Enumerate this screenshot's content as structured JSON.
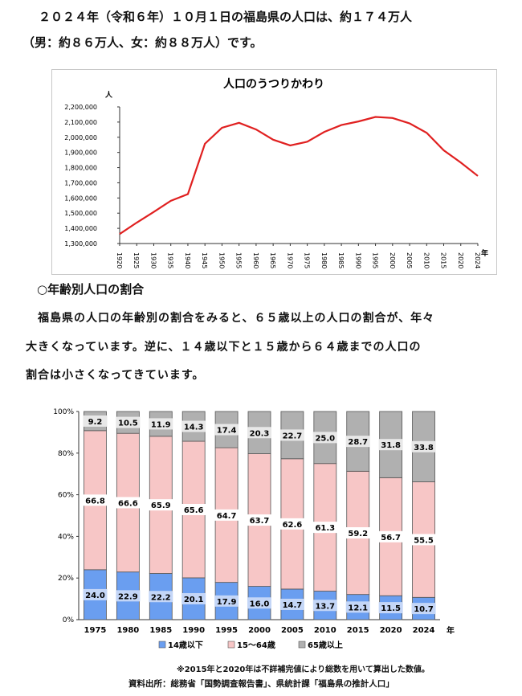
{
  "intro": {
    "line1": "２０２４年（令和６年）１０月１日の福島県の人口は、約１７４万人",
    "line2": "（男：約８６万人、女：約８８万人）です。"
  },
  "section": {
    "heading": "○年齢別人口の割合",
    "para1": "　福島県の人口の年齢別の割合をみると、６５歳以上の人口の割合が、年々",
    "para2": "大きくなっています。逆に、１４歳以下と１５歳から６４歳までの人口の",
    "para3": "割合は小さくなってきています。"
  },
  "footer": {
    "note": "※2015年と2020年は不詳補完値により総数を用いて算出した数値。",
    "source": "資料出所：総務省「国勢調査報告書」、県統計課「福島県の推計人口」"
  },
  "chart_data": [
    {
      "type": "line",
      "title": "人口のうつりかわり",
      "ylabel": "人",
      "xlabel": "年",
      "ylim": [
        1300000,
        2200000
      ],
      "y_ticks": [
        "1,300,000",
        "1,400,000",
        "1,500,000",
        "1,600,000",
        "1,700,000",
        "1,800,000",
        "1,900,000",
        "2,000,000",
        "2,100,000",
        "2,200,000"
      ],
      "x": [
        "1920",
        "1925",
        "1930",
        "1935",
        "1940",
        "1945",
        "1950",
        "1955",
        "1960",
        "1965",
        "1970",
        "1975",
        "1980",
        "1985",
        "1990",
        "1995",
        "2000",
        "2005",
        "2010",
        "2015",
        "2020",
        "2024"
      ],
      "values": [
        1362750,
        1437596,
        1508150,
        1581563,
        1625521,
        1957356,
        2062394,
        2095237,
        2051137,
        1983754,
        1946077,
        1970616,
        2035272,
        2080304,
        2104058,
        2133592,
        2126935,
        2091319,
        2029064,
        1914039,
        1833152,
        1745000
      ],
      "color": "#e02020",
      "grid": false
    },
    {
      "type": "bar",
      "stacked": true,
      "ylim": [
        0,
        100
      ],
      "y_ticks": [
        "0%",
        "20%",
        "40%",
        "60%",
        "80%",
        "100%"
      ],
      "xlabel": "年",
      "categories": [
        "1975",
        "1980",
        "1985",
        "1990",
        "1995",
        "2000",
        "2005",
        "2010",
        "2015",
        "2020",
        "2024"
      ],
      "series": [
        {
          "name": "14歳以下",
          "color": "#6a9ef0",
          "label_bg": "#c4d6f7",
          "values": [
            24.0,
            22.9,
            22.2,
            20.1,
            17.9,
            16.0,
            14.7,
            13.7,
            12.1,
            11.5,
            10.7
          ]
        },
        {
          "name": "15～64歳",
          "color": "#f7c6c6",
          "label_bg": "#ffffff",
          "values": [
            66.8,
            66.6,
            65.9,
            65.6,
            64.7,
            63.7,
            62.6,
            61.3,
            59.2,
            56.7,
            55.5
          ]
        },
        {
          "name": "65歳以上",
          "color": "#b0b0b0",
          "label_bg": "#e8e8e8",
          "values": [
            9.2,
            10.5,
            11.9,
            14.3,
            17.4,
            20.3,
            22.7,
            25.0,
            28.7,
            31.8,
            33.8
          ]
        }
      ],
      "labels": [
        [
          "24.0",
          "22.9",
          "22.2",
          "20.1",
          "17.9",
          "16.0",
          "14.7",
          "13.7",
          "12.1",
          "11.5",
          "10.7"
        ],
        [
          "66.8",
          "66.6",
          "65.9",
          "65.6",
          "64.7",
          "63.7",
          "62.6",
          "61.3",
          "59.2",
          "56.7",
          "55.5"
        ],
        [
          "9.2",
          "10.5",
          "11.9",
          "14.3",
          "17.4",
          "20.3",
          "22.7",
          "25.0",
          "28.7",
          "31.8",
          "33.8"
        ]
      ],
      "legend": "bottom"
    }
  ]
}
